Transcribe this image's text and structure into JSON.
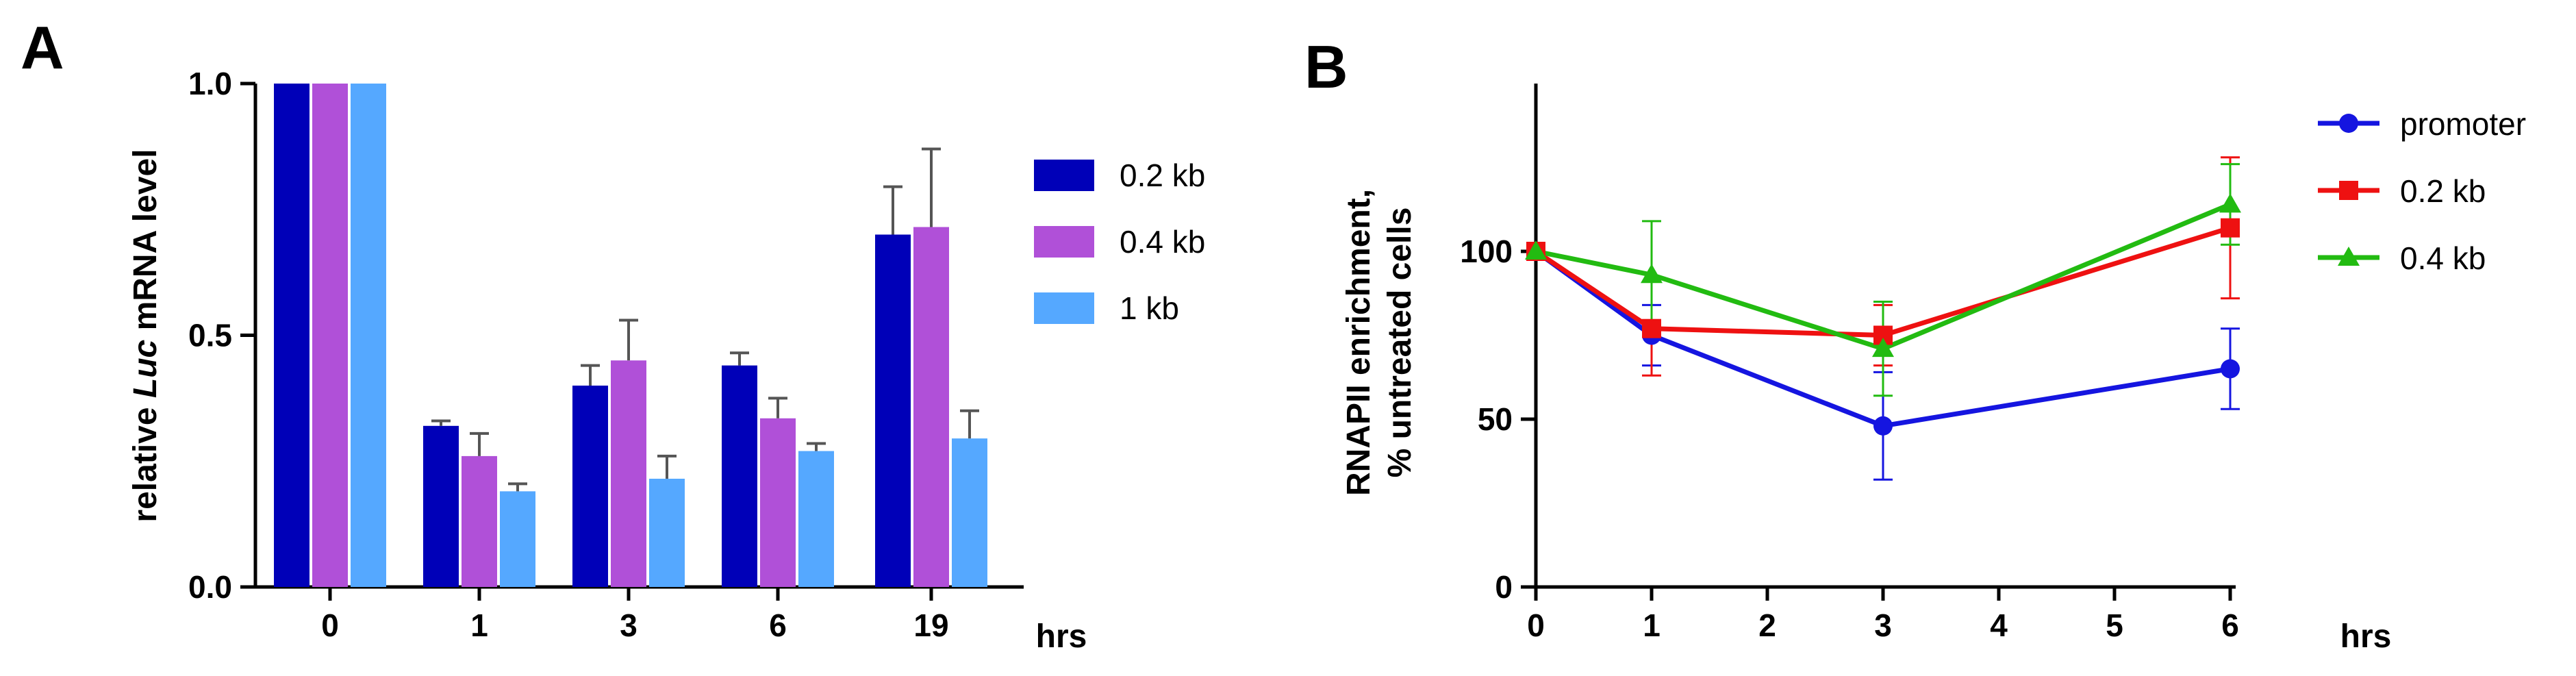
{
  "chart_data": [
    {
      "panel": "A",
      "type": "bar",
      "categories": [
        "0",
        "1",
        "3",
        "6",
        "19"
      ],
      "xlabel": "hrs",
      "ylabel_prefix": "relative ",
      "ylabel_italic": "Luc",
      "ylabel_suffix": " mRNA level",
      "ylim": [
        0,
        1.0
      ],
      "yticks": [
        "0.0",
        "0.5",
        "1.0"
      ],
      "series": [
        {
          "name": "0.2 kb",
          "color": "#0000b8",
          "values": [
            1.0,
            0.32,
            0.4,
            0.44,
            0.7
          ],
          "errors": [
            0,
            0.01,
            0.04,
            0.025,
            0.095
          ]
        },
        {
          "name": "0.4 kb",
          "color": "#b050d8",
          "values": [
            1.0,
            0.26,
            0.45,
            0.335,
            0.715
          ],
          "errors": [
            0,
            0.045,
            0.08,
            0.04,
            0.155
          ]
        },
        {
          "name": "1 kb",
          "color": "#55a8ff",
          "values": [
            1.0,
            0.19,
            0.215,
            0.27,
            0.295
          ],
          "errors": [
            0,
            0.015,
            0.045,
            0.015,
            0.055
          ]
        }
      ]
    },
    {
      "panel": "B",
      "type": "line",
      "x": [
        0,
        1,
        3,
        6
      ],
      "xticks": [
        "0",
        "1",
        "2",
        "3",
        "4",
        "5",
        "6"
      ],
      "xlabel": "hrs",
      "ylabel_line1": "RNAPII enrichment,",
      "ylabel_line2": "% untreated cells",
      "xlim": [
        0,
        6
      ],
      "ylim": [
        0,
        150
      ],
      "yticks": [
        "0",
        "50",
        "100"
      ],
      "series": [
        {
          "name": "promoter",
          "color": "#1515e0",
          "marker": "circle",
          "values": [
            100,
            75,
            48,
            65
          ],
          "errors": [
            0,
            9,
            16,
            12
          ]
        },
        {
          "name": "0.2 kb",
          "color": "#ee1111",
          "marker": "square",
          "values": [
            100,
            77,
            75,
            107
          ],
          "errors": [
            0,
            14,
            9,
            21
          ]
        },
        {
          "name": "0.4 kb",
          "color": "#22bb11",
          "marker": "triangle",
          "values": [
            100,
            93,
            71,
            114
          ],
          "errors": [
            0,
            16,
            14,
            12
          ]
        }
      ]
    }
  ]
}
